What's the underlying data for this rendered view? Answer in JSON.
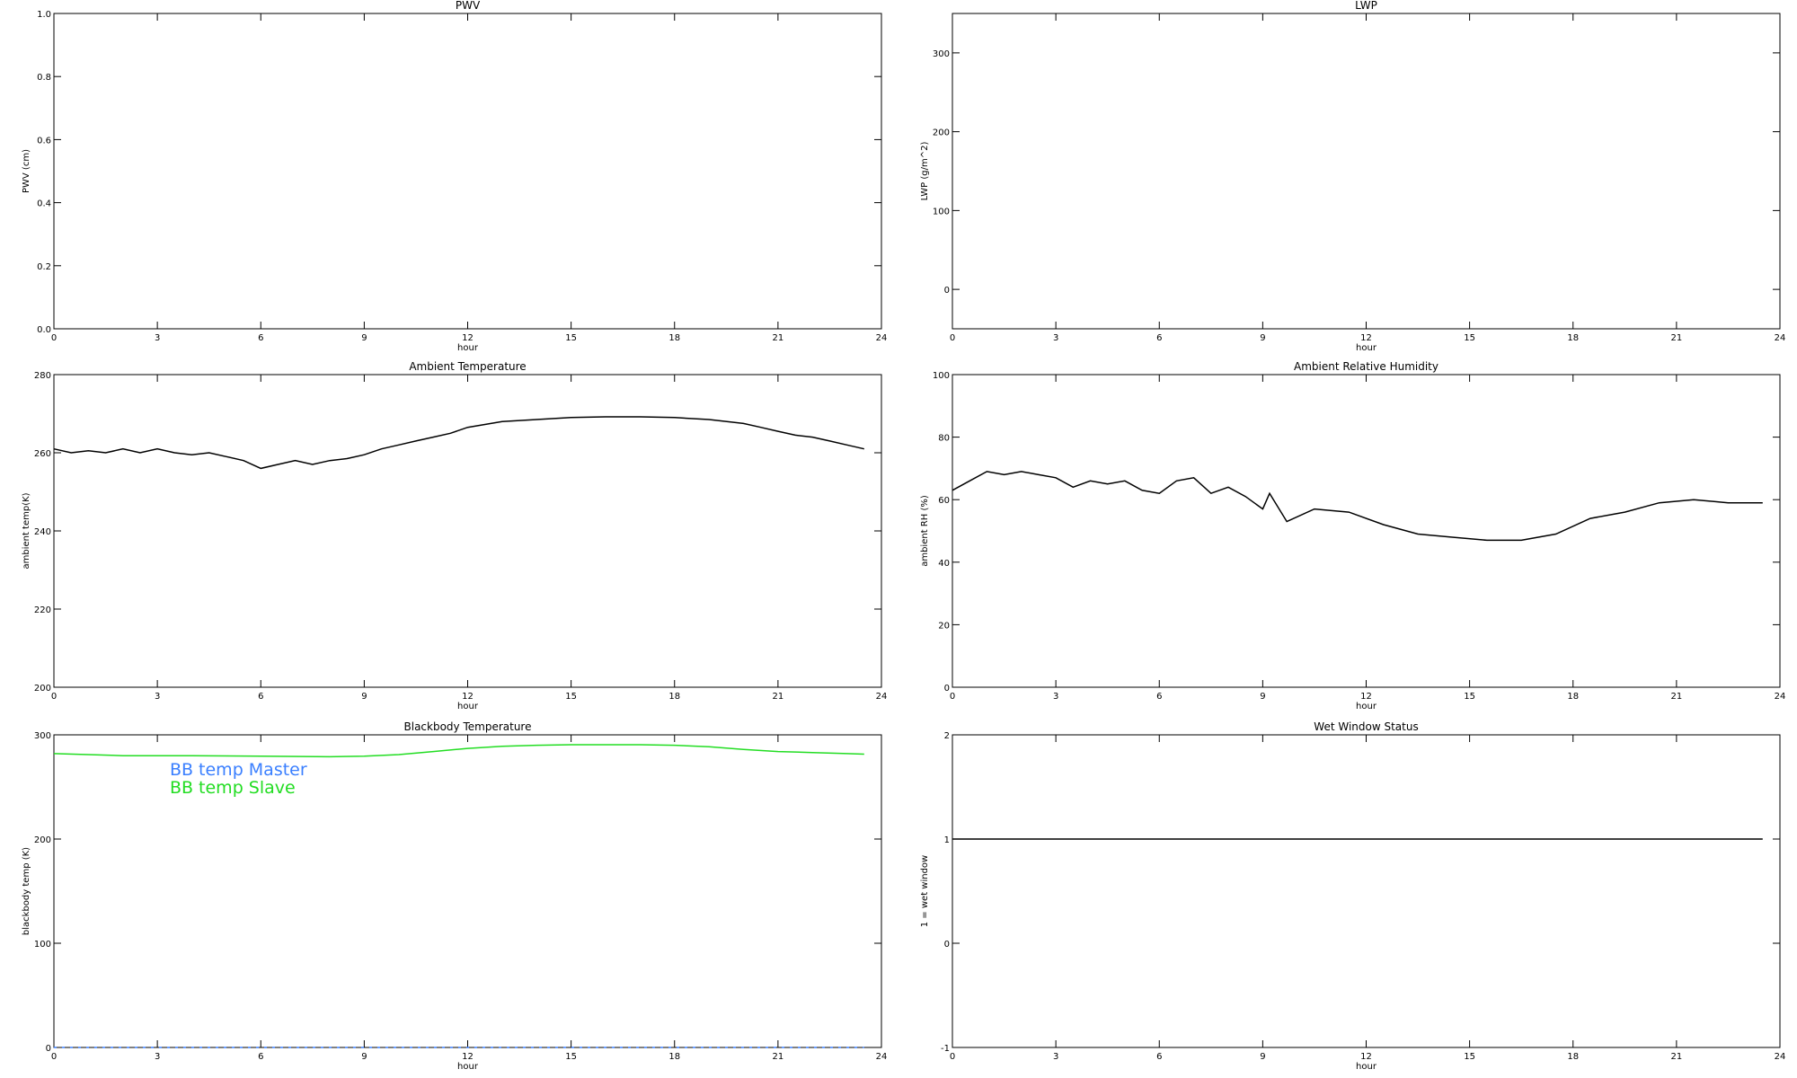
{
  "chart_data": [
    {
      "type": "line",
      "title": "PWV",
      "xlabel": "hour",
      "ylabel": "PWV (cm)",
      "xlim": [
        0,
        24
      ],
      "xticks": [
        0,
        3,
        6,
        9,
        12,
        15,
        18,
        21,
        24
      ],
      "ylim": [
        0,
        1
      ],
      "yticks": [
        {
          "value": 0,
          "label": "0.0"
        },
        0.2,
        0.4,
        0.6,
        0.8,
        {
          "value": 1,
          "label": "1.0"
        }
      ],
      "series": []
    },
    {
      "type": "line",
      "title": "LWP",
      "xlabel": "hour",
      "ylabel": "LWP (g/m^2)",
      "xlim": [
        0,
        24
      ],
      "xticks": [
        0,
        3,
        6,
        9,
        12,
        15,
        18,
        21,
        24
      ],
      "ylim": [
        -50,
        350
      ],
      "yticks": [
        0,
        100,
        200,
        300
      ],
      "series": []
    },
    {
      "type": "line",
      "title": "Ambient Temperature",
      "xlabel": "hour",
      "ylabel": "ambient temp(K)",
      "xlim": [
        0,
        24
      ],
      "xticks": [
        0,
        3,
        6,
        9,
        12,
        15,
        18,
        21,
        24
      ],
      "ylim": [
        200,
        280
      ],
      "yticks": [
        200,
        220,
        240,
        260,
        280
      ],
      "series": [
        {
          "color": "#000000",
          "x": [
            0,
            0.5,
            1,
            1.5,
            2,
            2.5,
            3,
            3.5,
            4,
            4.5,
            5,
            5.5,
            6,
            6.5,
            7,
            7.5,
            8,
            8.5,
            9,
            9.5,
            10,
            10.5,
            11,
            11.5,
            12,
            13,
            14,
            15,
            16,
            17,
            18,
            19,
            20,
            20.5,
            21,
            21.5,
            22,
            22.5,
            23,
            23.5
          ],
          "values": [
            261,
            260,
            260.5,
            260,
            261,
            260,
            261,
            260,
            259.5,
            260,
            259,
            258,
            256,
            257,
            258,
            257,
            258,
            258.5,
            259.5,
            261,
            262,
            263,
            264,
            265,
            266.5,
            268,
            268.5,
            269,
            269.2,
            269.2,
            269,
            268.5,
            267.5,
            266.5,
            265.5,
            264.5,
            264,
            263,
            262,
            261
          ]
        }
      ]
    },
    {
      "type": "line",
      "title": "Ambient Relative Humidity",
      "xlabel": "hour",
      "ylabel": "ambient RH (%)",
      "xlim": [
        0,
        24
      ],
      "xticks": [
        0,
        3,
        6,
        9,
        12,
        15,
        18,
        21,
        24
      ],
      "ylim": [
        0,
        100
      ],
      "yticks": [
        0,
        20,
        40,
        60,
        80,
        100
      ],
      "series": [
        {
          "color": "#000000",
          "x": [
            0,
            0.5,
            1,
            1.5,
            2,
            2.5,
            3,
            3.5,
            4,
            4.5,
            5,
            5.5,
            6,
            6.5,
            7,
            7.5,
            8,
            8.5,
            9,
            9.2,
            9.7,
            10.5,
            11.5,
            12.5,
            13.5,
            14.5,
            15.5,
            16.5,
            17.5,
            18.5,
            19.5,
            20.5,
            21.5,
            22.5,
            23.5
          ],
          "values": [
            63,
            66,
            69,
            68,
            69,
            68,
            67,
            64,
            66,
            65,
            66,
            63,
            62,
            66,
            67,
            62,
            64,
            61,
            57,
            62,
            53,
            57,
            56,
            52,
            49,
            48,
            47,
            47,
            49,
            54,
            56,
            59,
            60,
            59,
            59
          ]
        }
      ]
    },
    {
      "type": "line",
      "title": "Blackbody Temperature",
      "xlabel": "hour",
      "ylabel": "blackbody temp (K)",
      "xlim": [
        0,
        24
      ],
      "xticks": [
        0,
        3,
        6,
        9,
        12,
        15,
        18,
        21,
        24
      ],
      "ylim": [
        0,
        300
      ],
      "yticks": [
        0,
        100,
        200,
        300
      ],
      "legend": "upper left",
      "series": [
        {
          "name": "BB temp Master",
          "color": "#3a7fff",
          "dashed": true,
          "x": [
            0,
            3,
            6,
            9,
            12,
            15,
            18,
            21,
            23.5
          ],
          "values": [
            0,
            0,
            0,
            0,
            0,
            0,
            0,
            0,
            0
          ]
        },
        {
          "name": "BB temp Slave",
          "color": "#22dd22",
          "x": [
            0,
            1,
            2,
            4,
            6,
            8,
            9,
            10,
            11,
            12,
            13,
            14,
            15,
            16,
            17,
            18,
            19,
            20,
            21,
            22,
            23,
            23.5
          ],
          "values": [
            282,
            281,
            280,
            280,
            279.5,
            279,
            279.5,
            281,
            284,
            287,
            289,
            290,
            290.5,
            290.5,
            290.5,
            290,
            288.5,
            286,
            284,
            283,
            282,
            281.5
          ]
        }
      ]
    },
    {
      "type": "line",
      "title": "Wet Window Status",
      "xlabel": "hour",
      "ylabel": "1 = wet window",
      "xlim": [
        0,
        24
      ],
      "xticks": [
        0,
        3,
        6,
        9,
        12,
        15,
        18,
        21,
        24
      ],
      "ylim": [
        -1,
        2
      ],
      "yticks": [
        -1,
        0,
        1,
        2
      ],
      "series": [
        {
          "color": "#000000",
          "x": [
            0,
            23.5
          ],
          "values": [
            1,
            1
          ]
        }
      ]
    }
  ]
}
